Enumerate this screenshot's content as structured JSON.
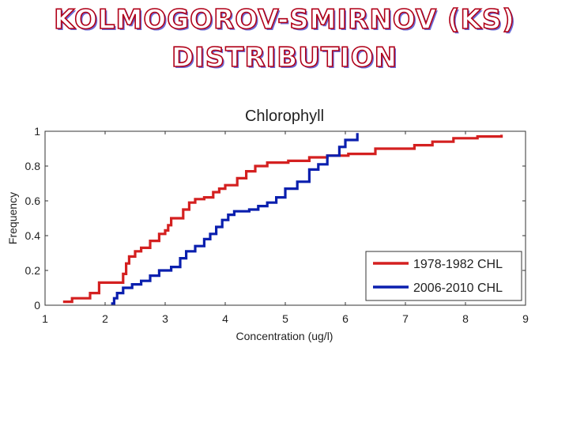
{
  "slide": {
    "title_line1": "KOLMOGOROV-SMIRNOV (KS)",
    "title_line2": "DISTRIBUTION"
  },
  "chart_data": {
    "type": "line",
    "title": "Chlorophyll",
    "xlabel": "Concentration (ug/l)",
    "ylabel": "Frequency",
    "xlim": [
      1,
      9
    ],
    "ylim": [
      0,
      1
    ],
    "xticks": [
      1,
      2,
      3,
      4,
      5,
      6,
      7,
      8,
      9
    ],
    "yticks": [
      0,
      0.2,
      0.4,
      0.6,
      0.8,
      1
    ],
    "ytick_labels": [
      "0",
      "0.2",
      "0.4",
      "0.6",
      "0.8",
      "1"
    ],
    "grid": false,
    "legend_position": "bottom-right",
    "series": [
      {
        "name": "1978-1982 CHL",
        "color": "#d42020",
        "x": [
          1.3,
          1.45,
          1.75,
          1.9,
          2.3,
          2.35,
          2.4,
          2.5,
          2.6,
          2.75,
          2.9,
          3.0,
          3.05,
          3.1,
          3.3,
          3.4,
          3.5,
          3.65,
          3.8,
          3.9,
          4.0,
          4.2,
          4.35,
          4.5,
          4.7,
          5.05,
          5.4,
          5.7,
          6.05,
          6.5,
          7.15,
          7.45,
          7.8,
          8.2,
          8.6
        ],
        "y": [
          0.02,
          0.04,
          0.07,
          0.13,
          0.18,
          0.24,
          0.28,
          0.31,
          0.33,
          0.37,
          0.41,
          0.43,
          0.46,
          0.5,
          0.55,
          0.59,
          0.61,
          0.62,
          0.65,
          0.67,
          0.69,
          0.73,
          0.77,
          0.8,
          0.82,
          0.83,
          0.85,
          0.86,
          0.87,
          0.9,
          0.92,
          0.94,
          0.96,
          0.97,
          0.98
        ]
      },
      {
        "name": "2006-2010 CHL",
        "color": "#0a1fae",
        "x": [
          2.1,
          2.15,
          2.2,
          2.3,
          2.45,
          2.6,
          2.75,
          2.9,
          3.1,
          3.25,
          3.35,
          3.5,
          3.65,
          3.75,
          3.85,
          3.95,
          4.05,
          4.15,
          4.4,
          4.55,
          4.7,
          4.85,
          5.0,
          5.2,
          5.4,
          5.55,
          5.7,
          5.9,
          6.0,
          6.2
        ],
        "y": [
          0.01,
          0.04,
          0.07,
          0.1,
          0.12,
          0.14,
          0.17,
          0.2,
          0.22,
          0.27,
          0.31,
          0.34,
          0.38,
          0.41,
          0.45,
          0.49,
          0.52,
          0.54,
          0.55,
          0.57,
          0.59,
          0.62,
          0.67,
          0.71,
          0.78,
          0.81,
          0.86,
          0.91,
          0.95,
          0.99
        ]
      }
    ]
  }
}
